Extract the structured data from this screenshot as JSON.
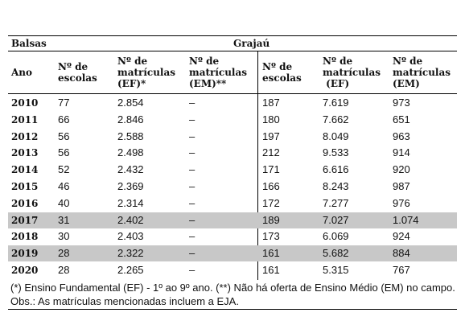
{
  "header": {
    "left": "Balsas",
    "right": "Grajaú"
  },
  "table": {
    "columns": [
      [
        "Ano"
      ],
      [
        "Nº de",
        "escolas"
      ],
      [
        "Nº de",
        "matrículas",
        "(EF)*"
      ],
      [
        "Nº de",
        "matrículas",
        "(EM)**"
      ],
      [
        "Nº de",
        "escolas"
      ],
      [
        "Nº de",
        "matrículas",
        " (EF)"
      ],
      [
        "Nº de",
        "matrículas",
        "(EM)"
      ]
    ],
    "rows": [
      {
        "cells": [
          "2010",
          "77",
          "2.854",
          "–",
          "187",
          "7.619",
          "973"
        ],
        "shaded": false
      },
      {
        "cells": [
          "2011",
          "66",
          "2.846",
          "–",
          "180",
          "7.662",
          "651"
        ],
        "shaded": false
      },
      {
        "cells": [
          "2012",
          "56",
          "2.588",
          "–",
          "197",
          "8.049",
          "963"
        ],
        "shaded": false
      },
      {
        "cells": [
          "2013",
          "56",
          "2.498",
          "–",
          "212",
          "9.533",
          "914"
        ],
        "shaded": false
      },
      {
        "cells": [
          "2014",
          "52",
          "2.432",
          "–",
          "171",
          "6.616",
          "920"
        ],
        "shaded": false
      },
      {
        "cells": [
          "2015",
          "46",
          "2.369",
          "–",
          "166",
          "8.243",
          "987"
        ],
        "shaded": false
      },
      {
        "cells": [
          "2016",
          "40",
          "2.314",
          "–",
          "172",
          "7.277",
          "976"
        ],
        "shaded": false
      },
      {
        "cells": [
          "2017",
          "31",
          "2.402",
          "–",
          "189",
          "7.027",
          "1.074"
        ],
        "shaded": true
      },
      {
        "cells": [
          "2018",
          "30",
          "2.403",
          "–",
          "173",
          "6.069",
          "924"
        ],
        "shaded": false
      },
      {
        "cells": [
          "2019",
          "28",
          "2.322",
          "–",
          "161",
          "5.682",
          "884"
        ],
        "shaded": true
      },
      {
        "cells": [
          "2020",
          "28",
          "2.265",
          "–",
          "161",
          "5.315",
          "767"
        ],
        "shaded": false
      }
    ]
  },
  "footnote": "(*) Ensino Fundamental (EF) - 1º ao 9º ano. (**) Não há oferta de Ensino Médio (EM) no campo. Obs.: As matrículas mencionadas incluem a EJA."
}
